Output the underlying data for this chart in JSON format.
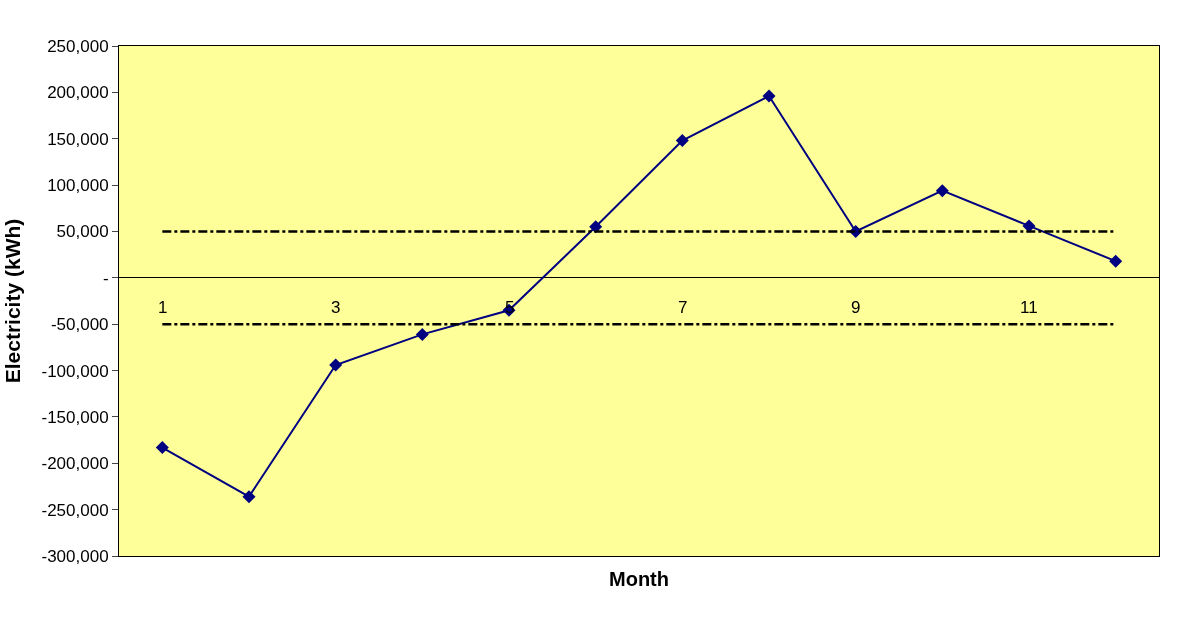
{
  "chart_data": {
    "type": "line",
    "xlabel": "Month",
    "ylabel": "Electricity (kWh)",
    "categories": [
      "1",
      null,
      "3",
      null,
      "5",
      null,
      "7",
      null,
      "9",
      null,
      "11",
      null
    ],
    "series": [
      {
        "color": "#000080",
        "values": [
          -183000,
          -236000,
          -94000,
          -61000,
          -35000,
          55000,
          148000,
          196000,
          50000,
          94000,
          56000,
          18000
        ]
      }
    ],
    "ylim": [
      -300000,
      250000
    ],
    "yticks": [
      {
        "value": -300000,
        "label": "-300,000"
      },
      {
        "value": -250000,
        "label": "-250,000"
      },
      {
        "value": -200000,
        "label": "-200,000"
      },
      {
        "value": -150000,
        "label": "-150,000"
      },
      {
        "value": -100000,
        "label": "-100,000"
      },
      {
        "value": -50000,
        "label": "-50,000"
      },
      {
        "value": 0,
        "label": "-"
      },
      {
        "value": 50000,
        "label": "50,000"
      },
      {
        "value": 100000,
        "label": "100,000"
      },
      {
        "value": 150000,
        "label": "150,000"
      },
      {
        "value": 200000,
        "label": "200,000"
      },
      {
        "value": 250000,
        "label": "250,000"
      }
    ],
    "ref_lines": [
      {
        "axis": "y",
        "value": 50000,
        "color": "#000000",
        "line_style": "dashdot"
      },
      {
        "axis": "y",
        "value": -50000,
        "color": "#000000",
        "line_style": "dashdot"
      }
    ],
    "marker": "diamond",
    "line_style": "solid"
  }
}
